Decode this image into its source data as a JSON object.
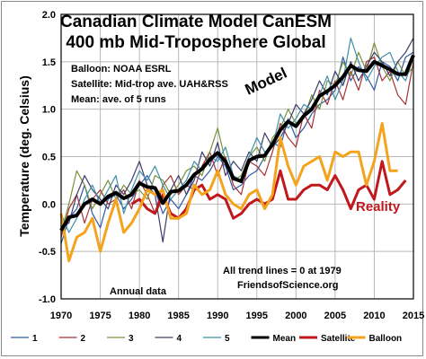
{
  "chart_data": {
    "type": "line",
    "title_lines": [
      "Canadian Climate Model CanESM",
      "400 mb Mid-Troposphere Global"
    ],
    "notes": [
      "Balloon: NOAA ESRL",
      "Satellite: Mid-trop ave. UAH&RSS",
      "Mean: ave. of 5 runs"
    ],
    "annotations": {
      "model": "Model",
      "reality": "Reality",
      "trend_note": "All trend lines = 0 at 1979",
      "source": "FriendsofScience.org",
      "annual": "Annual data"
    },
    "xlabel": "",
    "ylabel": "Temperature  (deg. Celsius)",
    "xlim": [
      1970,
      2015
    ],
    "ylim": [
      -1.0,
      2.0
    ],
    "xticks": [
      1970,
      1975,
      1980,
      1985,
      1990,
      1995,
      2000,
      2005,
      2010,
      2015
    ],
    "yticks": [
      "-1.0",
      "-0.5",
      "0.0",
      "0.5",
      "1.0",
      "1.5",
      "2.0"
    ],
    "grid": true,
    "legend_position": "bottom",
    "series": [
      {
        "name": "1",
        "color": "#2e5aa8",
        "width": 1.2,
        "x_start": 1970,
        "values": [
          -0.42,
          -0.15,
          -0.05,
          0.2,
          -0.1,
          -0.25,
          0.05,
          0.1,
          -0.05,
          0.05,
          0.2,
          0.3,
          0.15,
          -0.1,
          0.05,
          -0.05,
          0.1,
          0.3,
          0.25,
          0.35,
          0.5,
          0.4,
          0.15,
          0.2,
          0.3,
          0.35,
          0.5,
          0.65,
          0.6,
          0.9,
          0.7,
          0.8,
          0.95,
          1.05,
          1.1,
          1.2,
          1.55,
          1.3,
          1.45,
          1.35,
          1.2,
          1.5,
          1.45,
          1.3,
          1.55,
          1.6
        ]
      },
      {
        "name": "2",
        "color": "#a83232",
        "width": 1.2,
        "x_start": 1970,
        "values": [
          -0.35,
          -0.05,
          0.1,
          -0.2,
          0.05,
          0.15,
          0.0,
          0.05,
          0.15,
          -0.05,
          0.25,
          0.1,
          -0.1,
          0.2,
          0.3,
          0.1,
          0.2,
          0.15,
          0.4,
          0.55,
          0.3,
          0.5,
          0.2,
          0.1,
          0.45,
          0.4,
          0.3,
          0.55,
          0.85,
          0.7,
          0.6,
          0.95,
          0.8,
          1.2,
          1.05,
          1.3,
          1.1,
          1.4,
          1.2,
          1.5,
          1.55,
          1.3,
          1.4,
          1.15,
          1.05,
          1.5
        ]
      },
      {
        "name": "3",
        "color": "#76923c",
        "width": 1.2,
        "x_start": 1970,
        "values": [
          -0.3,
          0.0,
          0.35,
          0.2,
          -0.05,
          0.1,
          0.25,
          0.05,
          0.2,
          0.1,
          0.15,
          0.05,
          0.3,
          0.25,
          0.1,
          0.2,
          0.35,
          0.4,
          0.3,
          0.55,
          0.8,
          0.45,
          0.25,
          0.3,
          0.5,
          0.6,
          0.45,
          0.7,
          0.8,
          1.0,
          0.85,
          0.9,
          1.15,
          1.0,
          1.3,
          1.25,
          1.5,
          1.35,
          1.6,
          1.4,
          1.7,
          1.45,
          1.3,
          1.5,
          1.35,
          1.45
        ]
      },
      {
        "name": "4",
        "color": "#3d3d6b",
        "width": 1.2,
        "x_start": 1970,
        "values": [
          -0.25,
          -0.2,
          0.1,
          0.3,
          0.15,
          0.05,
          -0.05,
          0.2,
          0.1,
          0.25,
          0.45,
          0.2,
          0.1,
          -0.4,
          0.15,
          0.3,
          0.1,
          0.25,
          0.55,
          0.4,
          0.65,
          0.3,
          0.45,
          0.35,
          0.55,
          0.45,
          0.75,
          0.6,
          0.7,
          0.85,
          1.05,
          0.95,
          1.1,
          1.3,
          1.15,
          1.4,
          1.25,
          1.5,
          1.3,
          1.45,
          1.6,
          1.5,
          1.35,
          1.5,
          1.6,
          1.75
        ]
      },
      {
        "name": "5",
        "color": "#3f8fa8",
        "width": 1.2,
        "x_start": 1970,
        "values": [
          -0.1,
          -0.3,
          -0.15,
          0.05,
          0.2,
          0.0,
          0.15,
          0.3,
          -0.1,
          0.15,
          0.35,
          0.25,
          0.4,
          0.2,
          0.05,
          0.15,
          0.25,
          0.45,
          0.35,
          0.5,
          0.45,
          0.6,
          0.3,
          0.25,
          0.5,
          0.7,
          0.55,
          0.6,
          0.95,
          0.8,
          0.9,
          1.05,
          1.0,
          1.15,
          1.35,
          1.1,
          1.3,
          1.75,
          1.5,
          1.3,
          1.45,
          1.55,
          1.6,
          1.4,
          1.3,
          1.55
        ]
      },
      {
        "name": "Mean",
        "color": "#000000",
        "width": 4,
        "x_start": 1970,
        "values": [
          -0.28,
          -0.14,
          -0.12,
          0.0,
          0.05,
          0.0,
          0.08,
          0.12,
          0.06,
          0.1,
          0.22,
          0.18,
          0.17,
          0.01,
          0.13,
          0.14,
          0.2,
          0.31,
          0.37,
          0.47,
          0.54,
          0.45,
          0.27,
          0.24,
          0.46,
          0.5,
          0.51,
          0.63,
          0.78,
          0.87,
          0.82,
          0.93,
          1.0,
          1.14,
          1.19,
          1.25,
          1.34,
          1.46,
          1.41,
          1.4,
          1.5,
          1.46,
          1.42,
          1.37,
          1.37,
          1.57
        ]
      },
      {
        "name": "Satellite",
        "color": "#c0181c",
        "width": 3,
        "x_start": 1979,
        "values": [
          0.0,
          0.05,
          -0.05,
          -0.1,
          0.1,
          -0.1,
          -0.15,
          -0.05,
          0.15,
          0.2,
          0.05,
          0.1,
          0.05,
          -0.15,
          -0.1,
          0.0,
          0.05,
          0.0,
          0.05,
          0.35,
          0.05,
          0.05,
          0.15,
          0.2,
          0.2,
          0.15,
          0.3,
          0.15,
          -0.05,
          0.15,
          0.2,
          0.05,
          0.45,
          0.1,
          0.15,
          0.25
        ]
      },
      {
        "name": "Balloon",
        "color": "#f4a31c",
        "width": 3,
        "x_start": 1970,
        "values": [
          -0.1,
          -0.6,
          -0.35,
          -0.3,
          -0.15,
          -0.5,
          -0.2,
          0.05,
          -0.3,
          -0.2,
          -0.05,
          0.15,
          0.1,
          0.15,
          -0.15,
          -0.15,
          -0.1,
          0.2,
          0.1,
          0.15,
          0.35,
          0.1,
          0.0,
          -0.05,
          0.1,
          0.15,
          -0.05,
          0.1,
          0.7,
          0.4,
          0.2,
          0.4,
          0.45,
          0.5,
          0.25,
          0.55,
          0.5,
          0.55,
          0.55,
          0.2,
          0.45,
          0.85,
          0.35,
          0.35
        ]
      }
    ]
  }
}
